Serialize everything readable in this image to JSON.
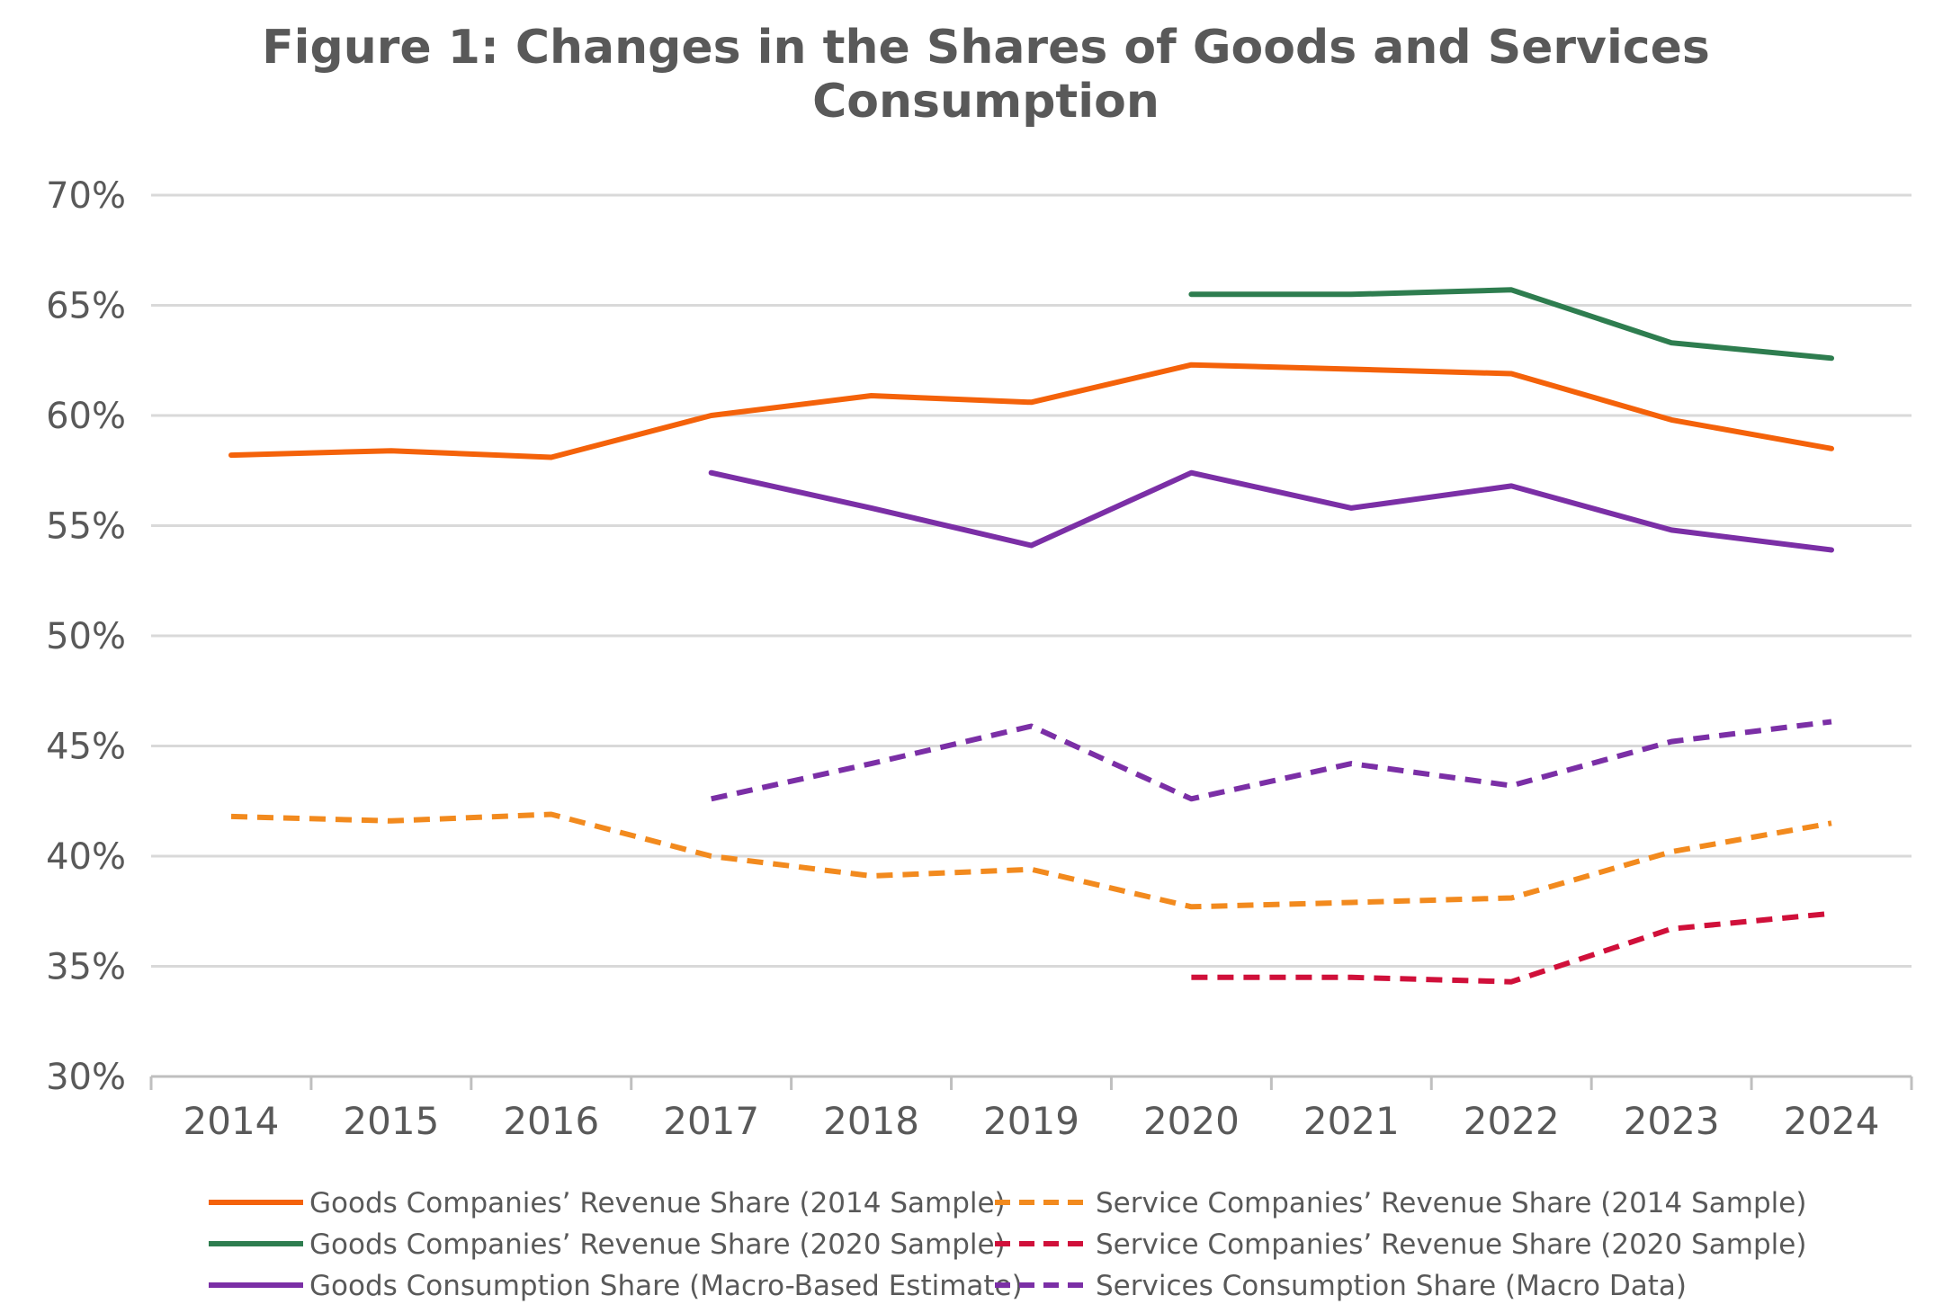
{
  "chart_data": {
    "type": "line",
    "title": "Figure 1: Changes in the Shares of Goods and Services Consumption",
    "title_lines": [
      "Figure 1: Changes in the Shares of Goods and Services",
      "Consumption"
    ],
    "xlabel": "",
    "ylabel": "",
    "categories": [
      "2014",
      "2015",
      "2016",
      "2017",
      "2018",
      "2019",
      "2020",
      "2021",
      "2022",
      "2023",
      "2024"
    ],
    "ylim": [
      30,
      70
    ],
    "yticks": [
      30,
      35,
      40,
      45,
      50,
      55,
      60,
      65,
      70
    ],
    "ytick_labels": [
      "30%",
      "35%",
      "40%",
      "45%",
      "50%",
      "55%",
      "60%",
      "65%",
      "70%"
    ],
    "grid": "horizontal",
    "legend_position": "bottom",
    "series": [
      {
        "name": "Goods Companies’ Revenue Share (2014 Sample)",
        "color": "#f4620a",
        "dash": "solid",
        "values": [
          58.2,
          58.4,
          58.1,
          60.0,
          60.9,
          60.6,
          62.3,
          62.1,
          61.9,
          59.8,
          58.5
        ]
      },
      {
        "name": "Service Companies’ Revenue Share (2014 Sample)",
        "color": "#f28a1e",
        "dash": "dashed",
        "values": [
          41.8,
          41.6,
          41.9,
          40.0,
          39.1,
          39.4,
          37.7,
          37.9,
          38.1,
          40.2,
          41.5
        ]
      },
      {
        "name": "Goods Companies’ Revenue Share (2020 Sample)",
        "color": "#2e7d4f",
        "dash": "solid",
        "values": [
          null,
          null,
          null,
          null,
          null,
          null,
          65.5,
          65.5,
          65.7,
          63.3,
          62.6
        ]
      },
      {
        "name": "Service Companies’ Revenue Share (2020 Sample)",
        "color": "#d0103a",
        "dash": "dashed",
        "values": [
          null,
          null,
          null,
          null,
          null,
          null,
          34.5,
          34.5,
          34.3,
          36.7,
          37.4
        ]
      },
      {
        "name": "Goods Consumption Share (Macro-Based Estimate)",
        "color": "#7b2fa6",
        "dash": "solid",
        "values": [
          null,
          null,
          null,
          57.4,
          55.8,
          54.1,
          57.4,
          55.8,
          56.8,
          54.8,
          53.9
        ]
      },
      {
        "name": "Services Consumption Share (Macro Data)",
        "color": "#7b2fa6",
        "dash": "dashed",
        "values": [
          null,
          null,
          null,
          42.6,
          44.2,
          45.9,
          42.6,
          44.2,
          43.2,
          45.2,
          46.1
        ]
      }
    ]
  }
}
